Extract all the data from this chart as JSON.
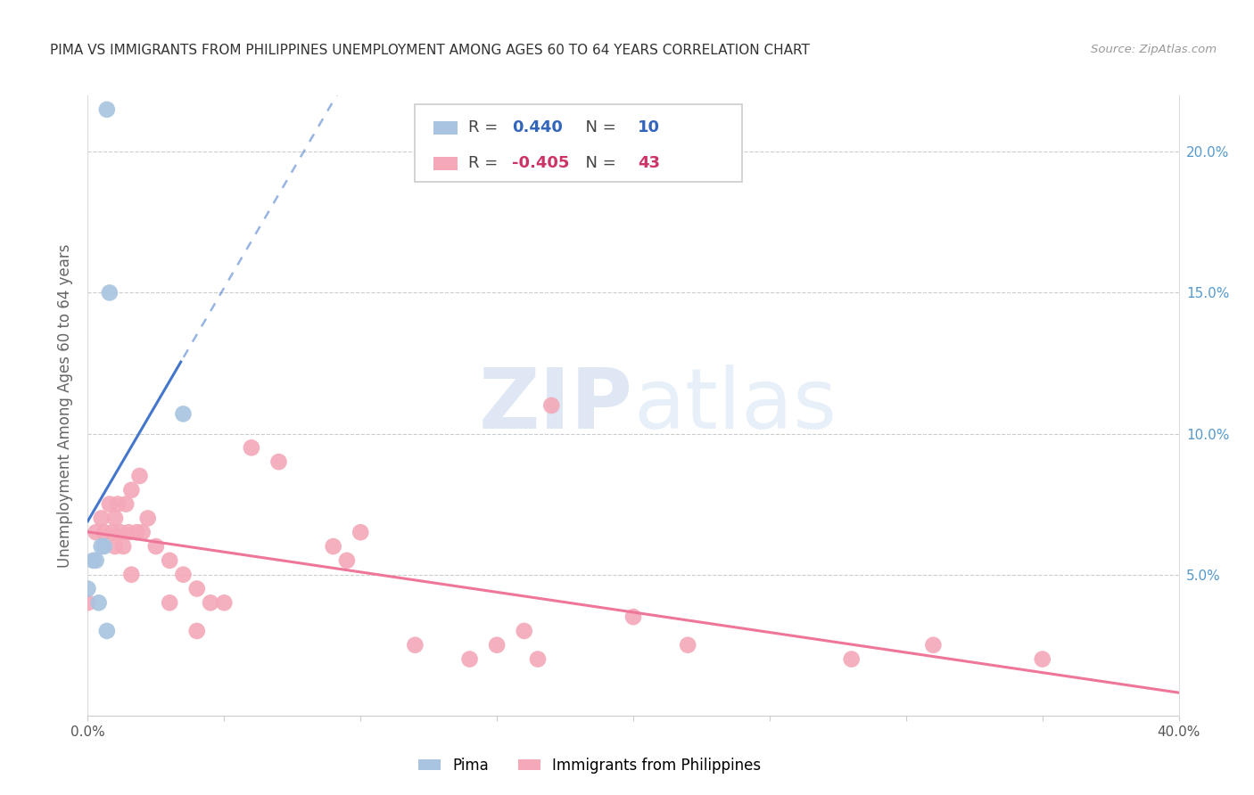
{
  "title": "PIMA VS IMMIGRANTS FROM PHILIPPINES UNEMPLOYMENT AMONG AGES 60 TO 64 YEARS CORRELATION CHART",
  "source": "Source: ZipAtlas.com",
  "ylabel": "Unemployment Among Ages 60 to 64 years",
  "xlim": [
    0.0,
    0.4
  ],
  "ylim": [
    0.0,
    0.22
  ],
  "yticks": [
    0.05,
    0.1,
    0.15,
    0.2
  ],
  "ytick_labels": [
    "5.0%",
    "10.0%",
    "15.0%",
    "20.0%"
  ],
  "xticks": [
    0.0,
    0.05,
    0.1,
    0.15,
    0.2,
    0.25,
    0.3,
    0.35,
    0.4
  ],
  "legend_blue_r": "0.440",
  "legend_blue_n": "10",
  "legend_pink_r": "-0.405",
  "legend_pink_n": "43",
  "blue_color": "#a8c4e0",
  "pink_color": "#f4a8b8",
  "blue_line_color": "#4477cc",
  "pink_line_color": "#ee7799",
  "pima_x": [
    0.0,
    0.002,
    0.003,
    0.004,
    0.005,
    0.006,
    0.007,
    0.007,
    0.008,
    0.035
  ],
  "pima_y": [
    0.045,
    0.055,
    0.055,
    0.04,
    0.06,
    0.06,
    0.03,
    0.215,
    0.15,
    0.107
  ],
  "phil_x": [
    0.0,
    0.003,
    0.005,
    0.006,
    0.008,
    0.009,
    0.01,
    0.01,
    0.011,
    0.012,
    0.013,
    0.014,
    0.015,
    0.016,
    0.016,
    0.018,
    0.019,
    0.02,
    0.022,
    0.025,
    0.03,
    0.03,
    0.035,
    0.04,
    0.04,
    0.045,
    0.05,
    0.06,
    0.07,
    0.09,
    0.095,
    0.1,
    0.12,
    0.14,
    0.15,
    0.16,
    0.165,
    0.17,
    0.2,
    0.22,
    0.28,
    0.31,
    0.35
  ],
  "phil_y": [
    0.04,
    0.065,
    0.07,
    0.065,
    0.075,
    0.065,
    0.07,
    0.06,
    0.075,
    0.065,
    0.06,
    0.075,
    0.065,
    0.08,
    0.05,
    0.065,
    0.085,
    0.065,
    0.07,
    0.06,
    0.055,
    0.04,
    0.05,
    0.045,
    0.03,
    0.04,
    0.04,
    0.095,
    0.09,
    0.06,
    0.055,
    0.065,
    0.025,
    0.02,
    0.025,
    0.03,
    0.02,
    0.11,
    0.035,
    0.025,
    0.02,
    0.025,
    0.02
  ],
  "blue_line_x_start": 0.0,
  "blue_line_solid_end": 0.035,
  "blue_line_x_end": 0.3,
  "pink_line_x_start": 0.0,
  "pink_line_x_end": 0.4
}
